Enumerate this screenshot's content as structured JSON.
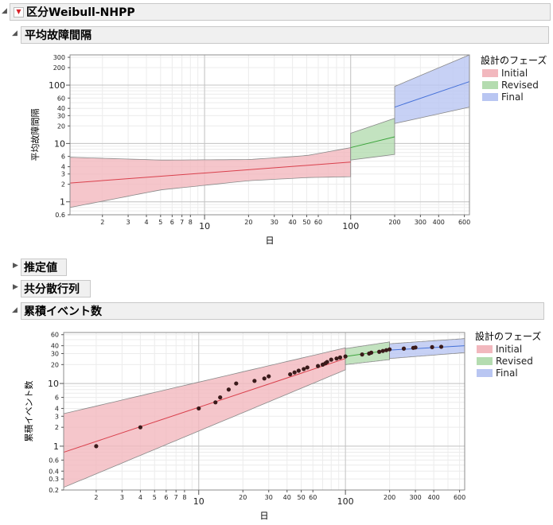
{
  "report": {
    "title": "区分Weibull-NHPP",
    "sections": {
      "mtbf": "平均故障間隔",
      "estimates": "推定値",
      "covariance": "共分散行列",
      "cumulative": "累積イベント数"
    }
  },
  "colors": {
    "initial_fill": "#f2b8be",
    "initial_line": "#d9404c",
    "revised_fill": "#b4dcb0",
    "revised_line": "#3aa33a",
    "final_fill": "#b9c6f2",
    "final_line": "#4470d8",
    "band_edge": "#8a8a8a",
    "point": "#3a1a1a"
  },
  "chart_data": [
    {
      "type": "line",
      "title": "",
      "xlabel": "日",
      "ylabel": "平均故障間隔",
      "xscale": "log",
      "yscale": "log",
      "xlim": [
        1.2,
        650
      ],
      "ylim": [
        0.6,
        330
      ],
      "xticks": [
        2,
        3,
        4,
        5,
        6,
        7,
        8,
        10,
        20,
        30,
        40,
        50,
        60,
        100,
        200,
        300,
        400,
        600
      ],
      "xticks_major": [
        10,
        100
      ],
      "yticks": [
        0.6,
        1,
        2,
        3,
        4,
        6,
        10,
        20,
        30,
        40,
        60,
        100,
        200,
        300
      ],
      "yticks_major": [
        1,
        10,
        100
      ],
      "legend": {
        "title": "設計のフェーズ",
        "position": "right",
        "entries": [
          "Initial",
          "Revised",
          "Final"
        ]
      },
      "series": [
        {
          "name": "Initial",
          "x": [
            1.2,
            100
          ],
          "fit": [
            2.1,
            4.8
          ],
          "lower": [
            0.8,
            2.6
          ],
          "upper": [
            5.8,
            8.5
          ],
          "band": {
            "x": [
              1.2,
              5,
              20,
              50,
              100
            ],
            "lower": [
              0.8,
              1.6,
              2.3,
              2.6,
              2.7
            ],
            "upper": [
              5.8,
              5.2,
              5.3,
              6.2,
              8.5
            ]
          }
        },
        {
          "name": "Revised",
          "x": [
            100,
            200
          ],
          "fit": [
            8.5,
            13
          ],
          "lower": [
            5.2,
            6.5
          ],
          "upper": [
            15,
            27
          ]
        },
        {
          "name": "Final",
          "x": [
            200,
            650
          ],
          "fit": [
            42,
            115
          ],
          "lower": [
            22,
            42
          ],
          "upper": [
            95,
            330
          ]
        }
      ]
    },
    {
      "type": "scatter",
      "title": "",
      "xlabel": "日",
      "ylabel": "累積イベント数",
      "xscale": "log",
      "yscale": "log",
      "xlim": [
        1.2,
        650
      ],
      "ylim": [
        0.2,
        65
      ],
      "xticks": [
        2,
        3,
        4,
        5,
        6,
        7,
        8,
        10,
        20,
        30,
        40,
        50,
        60,
        100,
        200,
        300,
        400,
        600
      ],
      "xticks_major": [
        10,
        100
      ],
      "yticks": [
        0.2,
        0.3,
        0.4,
        0.6,
        1,
        2,
        3,
        4,
        6,
        10,
        20,
        30,
        40,
        60
      ],
      "yticks_major": [
        1,
        10
      ],
      "legend": {
        "title": "設計のフェーズ",
        "position": "right",
        "entries": [
          "Initial",
          "Revised",
          "Final"
        ]
      },
      "series": [
        {
          "name": "Initial",
          "band": {
            "x": [
              1.2,
              100
            ],
            "lower": [
              0.22,
              16.5
            ],
            "upper": [
              3.3,
              37
            ]
          },
          "fit": {
            "x": [
              1.2,
              100
            ],
            "y": [
              0.8,
              25
            ]
          },
          "points": {
            "x": [
              2,
              4,
              10,
              13,
              14,
              16,
              18,
              24,
              28,
              30,
              42,
              45,
              48,
              52,
              55,
              65,
              70,
              73,
              75,
              80,
              87,
              92,
              100
            ],
            "y": [
              1,
              2,
              4,
              5,
              6,
              8,
              10,
              11,
              12,
              13,
              14,
              15,
              16,
              17,
              18,
              19,
              20,
              21,
              22,
              24,
              25,
              26,
              27
            ]
          }
        },
        {
          "name": "Revised",
          "band": {
            "x": [
              100,
              200
            ],
            "lower": [
              20,
              24
            ],
            "upper": [
              36,
              46
            ]
          },
          "fit": {
            "x": [
              100,
              200
            ],
            "y": [
              27,
              34
            ]
          },
          "points": {
            "x": [
              130,
              145,
              150,
              170,
              180,
              190,
              200
            ],
            "y": [
              29,
              30,
              31,
              32,
              33,
              34,
              35
            ]
          }
        },
        {
          "name": "Final",
          "band": {
            "x": [
              200,
              650
            ],
            "lower": [
              25,
              31
            ],
            "upper": [
              43,
              52
            ]
          },
          "fit": {
            "x": [
              200,
              650
            ],
            "y": [
              34,
              40
            ]
          },
          "points": {
            "x": [
              250,
              290,
              300,
              390,
              450
            ],
            "y": [
              36,
              37,
              37.5,
              38,
              38.5
            ]
          }
        }
      ]
    }
  ]
}
